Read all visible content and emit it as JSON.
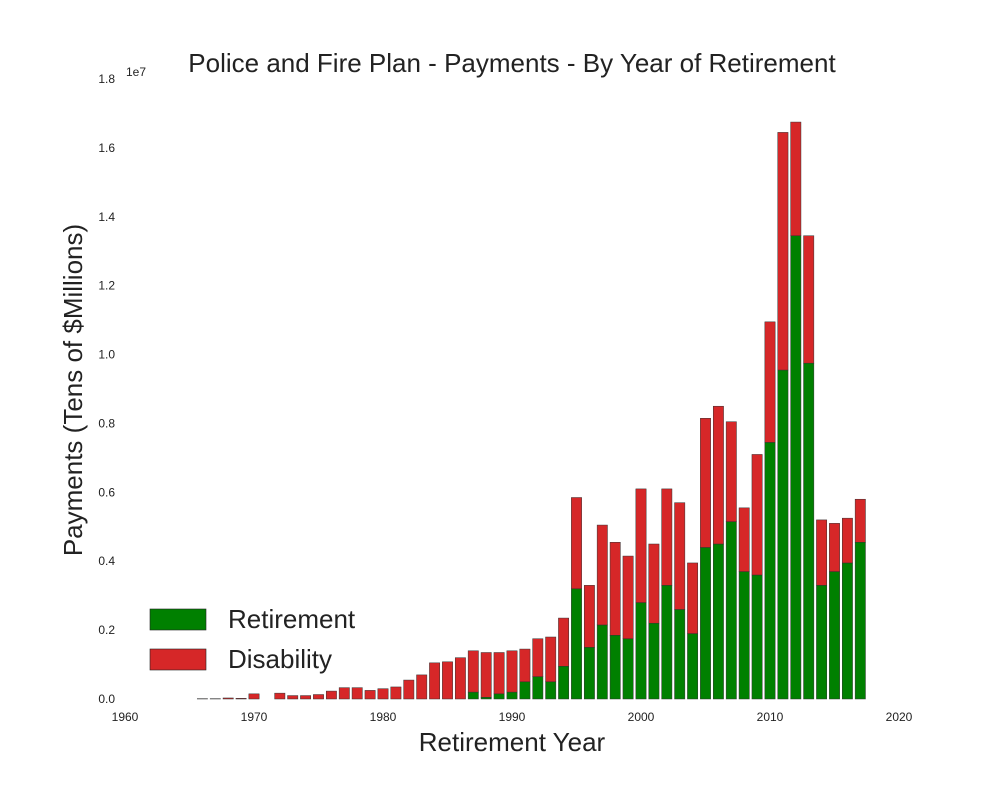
{
  "chart_data": {
    "type": "bar",
    "stacked": true,
    "title": "Police and Fire Plan - Payments - By Year of Retirement",
    "xlabel": "Retirement Year",
    "ylabel": "Payments (Tens of $Millions)",
    "y_offset_label": "1e7",
    "xlim": [
      1960,
      2020
    ],
    "ylim": [
      0,
      18000000
    ],
    "x_ticks": [
      1960,
      1970,
      1980,
      1990,
      2000,
      2010,
      2020
    ],
    "y_ticks": [
      0,
      2000000,
      4000000,
      6000000,
      8000000,
      10000000,
      12000000,
      14000000,
      16000000,
      18000000
    ],
    "y_tick_labels": [
      "0.0",
      "0.2",
      "0.4",
      "0.6",
      "0.8",
      "1.0",
      "1.2",
      "1.4",
      "1.6",
      "1.8"
    ],
    "legend_position": "lower-left",
    "series": [
      {
        "name": "Retirement",
        "color": "#008000",
        "values": [
          0,
          0,
          0,
          0,
          0,
          0,
          0,
          0,
          0,
          0,
          0,
          0,
          0,
          0,
          0,
          0,
          0,
          0,
          0,
          0,
          0,
          200000,
          50000,
          150000,
          200000,
          500000,
          650000,
          500000,
          950000,
          3200000,
          1500000,
          2150000,
          1850000,
          1750000,
          2800000,
          2200000,
          3300000,
          2600000,
          1900000,
          4400000,
          4500000,
          5150000,
          3700000,
          3600000,
          7450000,
          9550000,
          13450000,
          9750000,
          3300000,
          3700000,
          3950000,
          4550000
        ]
      },
      {
        "name": "Disability",
        "color": "#d62728",
        "values": [
          10000,
          10000,
          30000,
          20000,
          150000,
          0,
          170000,
          100000,
          100000,
          130000,
          230000,
          330000,
          330000,
          250000,
          300000,
          350000,
          550000,
          700000,
          1050000,
          1080000,
          1200000,
          1200000,
          1300000,
          1200000,
          1200000,
          950000,
          1100000,
          1300000,
          1400000,
          2650000,
          1800000,
          2900000,
          2700000,
          2400000,
          3300000,
          2300000,
          2800000,
          3100000,
          2050000,
          3750000,
          4000000,
          2900000,
          1850000,
          3500000,
          3500000,
          6900000,
          3300000,
          3700000,
          1900000,
          1400000,
          1300000,
          1250000
        ]
      }
    ],
    "x": [
      1966,
      1967,
      1968,
      1969,
      1970,
      1971,
      1972,
      1973,
      1974,
      1975,
      1976,
      1977,
      1978,
      1979,
      1980,
      1981,
      1982,
      1983,
      1984,
      1985,
      1986,
      1987,
      1988,
      1989,
      1990,
      1991,
      1992,
      1993,
      1994,
      1995,
      1996,
      1997,
      1998,
      1999,
      2000,
      2001,
      2002,
      2003,
      2004,
      2005,
      2006,
      2007,
      2008,
      2009,
      2010,
      2011,
      2012,
      2013,
      2014,
      2015,
      2016,
      2017
    ]
  }
}
